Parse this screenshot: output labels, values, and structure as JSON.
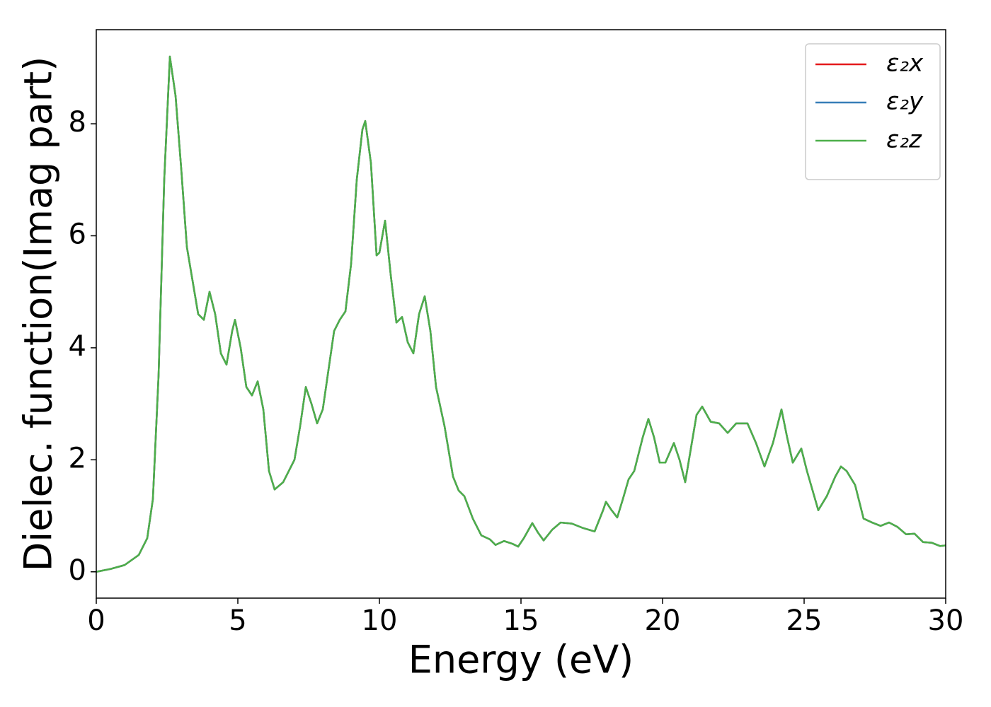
{
  "chart_data": {
    "type": "line",
    "xlabel": "Energy (eV)",
    "ylabel": "Dielec. function(Imag part)",
    "x": [
      0,
      0.5,
      1.0,
      1.5,
      1.8,
      2.0,
      2.2,
      2.4,
      2.6,
      2.8,
      3.0,
      3.2,
      3.4,
      3.6,
      3.8,
      4.0,
      4.2,
      4.4,
      4.6,
      4.8,
      4.9,
      5.1,
      5.3,
      5.5,
      5.7,
      5.9,
      6.1,
      6.3,
      6.6,
      7.0,
      7.2,
      7.4,
      7.6,
      7.8,
      8.0,
      8.2,
      8.4,
      8.6,
      8.8,
      9.0,
      9.2,
      9.4,
      9.5,
      9.7,
      9.9,
      10.0,
      10.2,
      10.4,
      10.6,
      10.8,
      11.0,
      11.2,
      11.4,
      11.6,
      11.8,
      12.0,
      12.3,
      12.6,
      12.8,
      13.0,
      13.3,
      13.6,
      13.9,
      14.1,
      14.4,
      14.7,
      14.9,
      15.1,
      15.4,
      15.6,
      15.8,
      16.1,
      16.4,
      16.8,
      17.2,
      17.6,
      17.9,
      18.0,
      18.2,
      18.4,
      18.6,
      18.8,
      19.0,
      19.3,
      19.5,
      19.7,
      19.9,
      20.1,
      20.4,
      20.6,
      20.8,
      21.0,
      21.2,
      21.4,
      21.7,
      22.0,
      22.3,
      22.6,
      23.0,
      23.3,
      23.6,
      23.9,
      24.2,
      24.4,
      24.6,
      24.9,
      25.1,
      25.5,
      25.8,
      26.1,
      26.3,
      26.5,
      26.8,
      27.1,
      27.4,
      27.7,
      28.0,
      28.3,
      28.6,
      28.9,
      29.2,
      29.5,
      29.8,
      30.0
    ],
    "series": [
      {
        "name": "ε₂x",
        "color": "#e41a1c",
        "values": [
          0,
          0.05,
          0.12,
          0.3,
          0.6,
          1.3,
          3.5,
          7.0,
          9.2,
          8.5,
          7.2,
          5.8,
          5.2,
          4.6,
          4.5,
          5.0,
          4.6,
          3.9,
          3.7,
          4.3,
          4.5,
          4.0,
          3.3,
          3.15,
          3.4,
          2.9,
          1.8,
          1.47,
          1.6,
          2.0,
          2.6,
          3.3,
          3.0,
          2.65,
          2.9,
          3.6,
          4.3,
          4.5,
          4.65,
          5.5,
          7.0,
          7.9,
          8.05,
          7.3,
          5.65,
          5.7,
          6.27,
          5.3,
          4.45,
          4.55,
          4.1,
          3.9,
          4.6,
          4.92,
          4.3,
          3.3,
          2.6,
          1.7,
          1.45,
          1.35,
          0.95,
          0.65,
          0.58,
          0.48,
          0.55,
          0.5,
          0.45,
          0.6,
          0.87,
          0.7,
          0.56,
          0.75,
          0.88,
          0.86,
          0.78,
          0.72,
          1.1,
          1.25,
          1.1,
          0.97,
          1.3,
          1.65,
          1.8,
          2.4,
          2.73,
          2.4,
          1.95,
          1.95,
          2.3,
          2.0,
          1.6,
          2.2,
          2.8,
          2.95,
          2.68,
          2.65,
          2.48,
          2.65,
          2.65,
          2.3,
          1.88,
          2.3,
          2.9,
          2.4,
          1.95,
          2.2,
          1.8,
          1.1,
          1.35,
          1.7,
          1.88,
          1.8,
          1.55,
          0.95,
          0.88,
          0.82,
          0.88,
          0.8,
          0.67,
          0.68,
          0.53,
          0.52,
          0.46,
          0.47
        ]
      },
      {
        "name": "ε₂y",
        "color": "#377eb8",
        "values": [
          0,
          0.05,
          0.12,
          0.3,
          0.6,
          1.3,
          3.5,
          7.0,
          9.2,
          8.5,
          7.2,
          5.8,
          5.2,
          4.6,
          4.5,
          5.0,
          4.6,
          3.9,
          3.7,
          4.3,
          4.5,
          4.0,
          3.3,
          3.15,
          3.4,
          2.9,
          1.8,
          1.47,
          1.6,
          2.0,
          2.6,
          3.3,
          3.0,
          2.65,
          2.9,
          3.6,
          4.3,
          4.5,
          4.65,
          5.5,
          7.0,
          7.9,
          8.05,
          7.3,
          5.65,
          5.7,
          6.27,
          5.3,
          4.45,
          4.55,
          4.1,
          3.9,
          4.6,
          4.92,
          4.3,
          3.3,
          2.6,
          1.7,
          1.45,
          1.35,
          0.95,
          0.65,
          0.58,
          0.48,
          0.55,
          0.5,
          0.45,
          0.6,
          0.87,
          0.7,
          0.56,
          0.75,
          0.88,
          0.86,
          0.78,
          0.72,
          1.1,
          1.25,
          1.1,
          0.97,
          1.3,
          1.65,
          1.8,
          2.4,
          2.73,
          2.4,
          1.95,
          1.95,
          2.3,
          2.0,
          1.6,
          2.2,
          2.8,
          2.95,
          2.68,
          2.65,
          2.48,
          2.65,
          2.65,
          2.3,
          1.88,
          2.3,
          2.9,
          2.4,
          1.95,
          2.2,
          1.8,
          1.1,
          1.35,
          1.7,
          1.88,
          1.8,
          1.55,
          0.95,
          0.88,
          0.82,
          0.88,
          0.8,
          0.67,
          0.68,
          0.53,
          0.52,
          0.46,
          0.47
        ]
      },
      {
        "name": "ε₂z",
        "color": "#4daf4a",
        "values": [
          0,
          0.05,
          0.12,
          0.3,
          0.6,
          1.3,
          3.5,
          7.0,
          9.2,
          8.5,
          7.2,
          5.8,
          5.2,
          4.6,
          4.5,
          5.0,
          4.6,
          3.9,
          3.7,
          4.3,
          4.5,
          4.0,
          3.3,
          3.15,
          3.4,
          2.9,
          1.8,
          1.47,
          1.6,
          2.0,
          2.6,
          3.3,
          3.0,
          2.65,
          2.9,
          3.6,
          4.3,
          4.5,
          4.65,
          5.5,
          7.0,
          7.9,
          8.05,
          7.3,
          5.65,
          5.7,
          6.27,
          5.3,
          4.45,
          4.55,
          4.1,
          3.9,
          4.6,
          4.92,
          4.3,
          3.3,
          2.6,
          1.7,
          1.45,
          1.35,
          0.95,
          0.65,
          0.58,
          0.48,
          0.55,
          0.5,
          0.45,
          0.6,
          0.87,
          0.7,
          0.56,
          0.75,
          0.88,
          0.86,
          0.78,
          0.72,
          1.1,
          1.25,
          1.1,
          0.97,
          1.3,
          1.65,
          1.8,
          2.4,
          2.73,
          2.4,
          1.95,
          1.95,
          2.3,
          2.0,
          1.6,
          2.2,
          2.8,
          2.95,
          2.68,
          2.65,
          2.48,
          2.65,
          2.65,
          2.3,
          1.88,
          2.3,
          2.9,
          2.4,
          1.95,
          2.2,
          1.8,
          1.1,
          1.35,
          1.7,
          1.88,
          1.8,
          1.55,
          0.95,
          0.88,
          0.82,
          0.88,
          0.8,
          0.67,
          0.68,
          0.53,
          0.52,
          0.46,
          0.47
        ]
      }
    ],
    "xlim": [
      0,
      30
    ],
    "xticks": [
      0,
      5,
      10,
      15,
      20,
      25,
      30
    ],
    "ylim": [
      -0.47,
      9.68
    ],
    "yticks": [
      0,
      2,
      4,
      6,
      8
    ],
    "grid": false,
    "legend": "upper right"
  }
}
